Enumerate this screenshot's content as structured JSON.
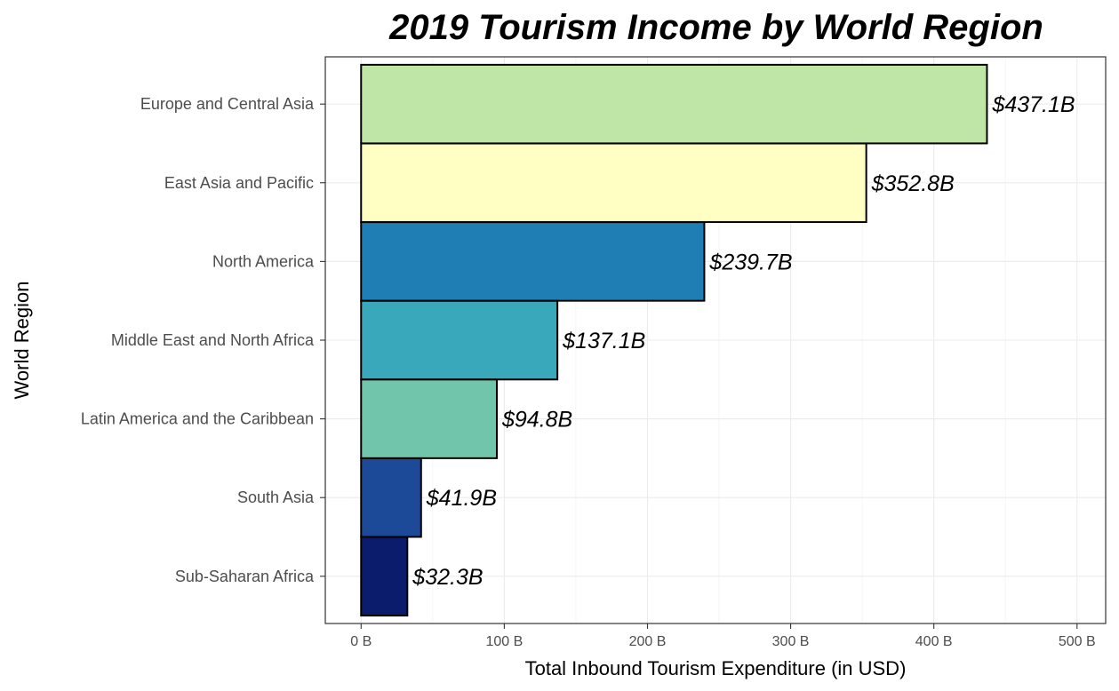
{
  "chart_data": {
    "type": "bar",
    "orientation": "horizontal",
    "title": "2019 Tourism Income by World Region",
    "xlabel": "Total Inbound Tourism Expenditure (in USD)",
    "ylabel": "World Region",
    "categories": [
      "Europe and Central Asia",
      "East Asia and Pacific",
      "North America",
      "Middle East and North Africa",
      "Latin America and the Caribbean",
      "South Asia",
      "Sub-Saharan Africa"
    ],
    "values": [
      437.1,
      352.8,
      239.7,
      137.1,
      94.8,
      41.9,
      32.3
    ],
    "data_labels": [
      "$437.1B",
      "$352.8B",
      "$239.7B",
      "$137.1B",
      "$94.8B",
      "$41.9B",
      "$32.3B"
    ],
    "colors": [
      "#bfe6a6",
      "#ffffc3",
      "#1f7fb5",
      "#39a8bb",
      "#70c5ab",
      "#1d4a98",
      "#0c1c6c"
    ],
    "xlim": [
      -25,
      520
    ],
    "xticks": [
      0,
      100,
      200,
      300,
      400,
      500
    ],
    "xtick_labels": [
      "0 B",
      "100 B",
      "200 B",
      "300 B",
      "400 B",
      "500 B"
    ],
    "grid": true,
    "legend": "none"
  }
}
